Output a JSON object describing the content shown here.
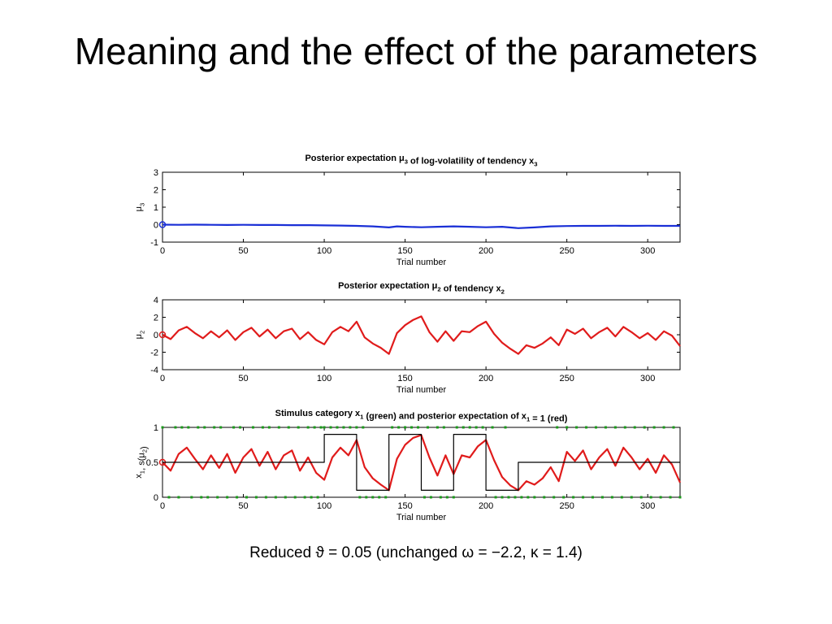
{
  "slide": {
    "title": "Meaning and the effect of the parameters",
    "caption": "Reduced ϑ = 0.05 (unchanged ω = −2.2, κ = 1.4)"
  },
  "colors": {
    "mu3": "#1a2fd6",
    "mu2": "#e01b1b",
    "x1": "#1a9a1a",
    "black": "#000000"
  },
  "chart_data": [
    {
      "type": "line",
      "title": "Posterior expectation μ3 of log-volatility of tendency x3",
      "xlabel": "Trial number",
      "ylabel": "μ3",
      "xlim": [
        0,
        320
      ],
      "ylim": [
        -1,
        3
      ],
      "xticks": [
        0,
        50,
        100,
        150,
        200,
        250,
        300
      ],
      "yticks": [
        -1,
        0,
        1,
        2,
        3
      ],
      "series": [
        {
          "name": "",
          "color": "mu3",
          "initial_marker": [
            0,
            0
          ],
          "x": [
            0,
            10,
            20,
            30,
            40,
            50,
            60,
            70,
            80,
            90,
            100,
            110,
            120,
            130,
            140,
            145,
            150,
            160,
            170,
            180,
            190,
            200,
            210,
            220,
            230,
            240,
            250,
            260,
            270,
            280,
            290,
            300,
            310,
            320
          ],
          "y": [
            0,
            -0.01,
            0,
            -0.01,
            -0.02,
            -0.01,
            -0.02,
            -0.02,
            -0.03,
            -0.03,
            -0.04,
            -0.05,
            -0.07,
            -0.1,
            -0.16,
            -0.1,
            -0.12,
            -0.15,
            -0.12,
            -0.1,
            -0.12,
            -0.15,
            -0.12,
            -0.2,
            -0.16,
            -0.1,
            -0.08,
            -0.07,
            -0.07,
            -0.06,
            -0.07,
            -0.06,
            -0.07,
            -0.07
          ]
        }
      ]
    },
    {
      "type": "line",
      "title": "Posterior expectation μ2 of tendency x2",
      "xlabel": "Trial number",
      "ylabel": "μ2",
      "xlim": [
        0,
        320
      ],
      "ylim": [
        -4,
        4
      ],
      "xticks": [
        0,
        50,
        100,
        150,
        200,
        250,
        300
      ],
      "yticks": [
        -4,
        -2,
        0,
        2,
        4
      ],
      "series": [
        {
          "name": "",
          "color": "mu2",
          "initial_marker": [
            0,
            0
          ],
          "x": [
            0,
            5,
            10,
            15,
            20,
            25,
            30,
            35,
            40,
            45,
            50,
            55,
            60,
            65,
            70,
            75,
            80,
            85,
            90,
            95,
            100,
            105,
            110,
            115,
            120,
            125,
            130,
            135,
            140,
            145,
            150,
            155,
            160,
            165,
            170,
            175,
            180,
            185,
            190,
            195,
            200,
            205,
            210,
            215,
            220,
            225,
            230,
            235,
            240,
            245,
            250,
            255,
            260,
            265,
            270,
            275,
            280,
            285,
            290,
            295,
            300,
            305,
            310,
            315,
            320
          ],
          "y": [
            0,
            -0.5,
            0.5,
            0.9,
            0.2,
            -0.4,
            0.4,
            -0.3,
            0.5,
            -0.6,
            0.3,
            0.8,
            -0.2,
            0.6,
            -0.4,
            0.4,
            0.7,
            -0.5,
            0.3,
            -0.6,
            -1.1,
            0.3,
            0.9,
            0.4,
            1.5,
            -0.3,
            -1.0,
            -1.5,
            -2.2,
            0.2,
            1.1,
            1.7,
            2.1,
            0.3,
            -0.8,
            0.4,
            -0.7,
            0.4,
            0.3,
            1.0,
            1.5,
            0.1,
            -0.9,
            -1.6,
            -2.2,
            -1.2,
            -1.5,
            -1.0,
            -0.3,
            -1.2,
            0.6,
            0.1,
            0.7,
            -0.4,
            0.3,
            0.8,
            -0.2,
            0.9,
            0.3,
            -0.4,
            0.2,
            -0.6,
            0.4,
            -0.1,
            -1.3
          ]
        }
      ]
    },
    {
      "type": "line",
      "title": "Stimulus category x1 (green) and posterior expectation of x1 = 1 (red)",
      "xlabel": "Trial number",
      "ylabel": "x1, s(μ2)",
      "xlim": [
        0,
        320
      ],
      "ylim": [
        0,
        1
      ],
      "xticks": [
        0,
        50,
        100,
        150,
        200,
        250,
        300
      ],
      "yticks": [
        0,
        0.5,
        1
      ],
      "ytick_labels": [
        "0",
        "0.5",
        "1"
      ],
      "series": [
        {
          "name": "",
          "color": "mu2",
          "initial_marker": [
            0,
            0.5
          ],
          "x": [
            0,
            5,
            10,
            15,
            20,
            25,
            30,
            35,
            40,
            45,
            50,
            55,
            60,
            65,
            70,
            75,
            80,
            85,
            90,
            95,
            100,
            105,
            110,
            115,
            120,
            125,
            130,
            135,
            140,
            145,
            150,
            155,
            160,
            165,
            170,
            175,
            180,
            185,
            190,
            195,
            200,
            205,
            210,
            215,
            220,
            225,
            230,
            235,
            240,
            245,
            250,
            255,
            260,
            265,
            270,
            275,
            280,
            285,
            290,
            295,
            300,
            305,
            310,
            315,
            320
          ],
          "y": [
            0.5,
            0.38,
            0.62,
            0.71,
            0.55,
            0.4,
            0.6,
            0.42,
            0.62,
            0.35,
            0.57,
            0.69,
            0.45,
            0.65,
            0.4,
            0.6,
            0.67,
            0.38,
            0.57,
            0.35,
            0.25,
            0.57,
            0.71,
            0.6,
            0.82,
            0.43,
            0.27,
            0.18,
            0.1,
            0.55,
            0.75,
            0.85,
            0.89,
            0.57,
            0.31,
            0.6,
            0.33,
            0.6,
            0.57,
            0.73,
            0.82,
            0.53,
            0.29,
            0.17,
            0.1,
            0.23,
            0.18,
            0.27,
            0.43,
            0.23,
            0.65,
            0.52,
            0.67,
            0.4,
            0.57,
            0.69,
            0.45,
            0.71,
            0.57,
            0.4,
            0.55,
            0.35,
            0.6,
            0.47,
            0.21
          ]
        },
        {
          "name": "",
          "color": "black",
          "x": [
            0,
            100,
            100,
            120,
            120,
            140,
            140,
            160,
            160,
            180,
            180,
            200,
            200,
            220,
            220,
            320
          ],
          "y": [
            0.5,
            0.5,
            0.9,
            0.9,
            0.1,
            0.1,
            0.9,
            0.9,
            0.1,
            0.1,
            0.9,
            0.9,
            0.1,
            0.1,
            0.5,
            0.5
          ]
        },
        {
          "name": "",
          "color": "x1",
          "style": "dots",
          "x_at_1": [
            0,
            8,
            12,
            16,
            22,
            26,
            32,
            36,
            44,
            48,
            56,
            62,
            66,
            72,
            78,
            84,
            90,
            94,
            98,
            100,
            104,
            108,
            112,
            116,
            120,
            124,
            142,
            146,
            150,
            154,
            158,
            164,
            170,
            174,
            182,
            186,
            190,
            194,
            198,
            204,
            212,
            244,
            250,
            256,
            262,
            268,
            274,
            280,
            286,
            292,
            298,
            304,
            310,
            316
          ],
          "x_at_0": [
            4,
            10,
            18,
            24,
            28,
            34,
            40,
            46,
            52,
            58,
            64,
            70,
            76,
            82,
            88,
            92,
            96,
            122,
            126,
            130,
            134,
            138,
            162,
            166,
            172,
            176,
            180,
            206,
            210,
            214,
            218,
            222,
            226,
            230,
            236,
            242,
            248,
            254,
            260,
            266,
            272,
            278,
            284,
            290,
            296,
            302,
            308,
            314,
            320
          ]
        }
      ]
    }
  ]
}
